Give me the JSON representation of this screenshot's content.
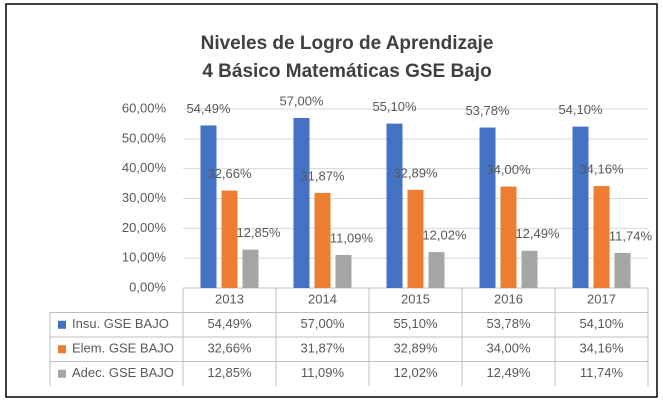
{
  "chart_data": {
    "type": "bar",
    "title": "Niveles de Logro de Aprendizaje",
    "subtitle": "4 Básico Matemáticas GSE Bajo",
    "categories": [
      "2013",
      "2014",
      "2015",
      "2016",
      "2017"
    ],
    "series": [
      {
        "name": "Insu. GSE BAJO",
        "color": "#4472c4",
        "values": [
          54.49,
          57.0,
          55.1,
          53.78,
          54.1
        ],
        "value_labels": [
          "54,49%",
          "57,00%",
          "55,10%",
          "53,78%",
          "54,10%"
        ]
      },
      {
        "name": "Elem. GSE BAJO",
        "color": "#ed7d31",
        "values": [
          32.66,
          31.87,
          32.89,
          34.0,
          34.16
        ],
        "value_labels": [
          "32,66%",
          "31,87%",
          "32,89%",
          "34,00%",
          "34,16%"
        ]
      },
      {
        "name": "Adec. GSE BAJO",
        "color": "#a5a5a5",
        "values": [
          12.85,
          11.09,
          12.02,
          12.49,
          11.74
        ],
        "value_labels": [
          "12,85%",
          "11,09%",
          "12,02%",
          "12,49%",
          "11,74%"
        ]
      }
    ],
    "ylim": [
      0,
      60
    ],
    "yticks": [
      {
        "value": 0,
        "label": "0,00%"
      },
      {
        "value": 10,
        "label": "10,00%"
      },
      {
        "value": 20,
        "label": "20,00%"
      },
      {
        "value": 30,
        "label": "30,00%"
      },
      {
        "value": 40,
        "label": "40,00%"
      },
      {
        "value": 50,
        "label": "50,00%"
      },
      {
        "value": 60,
        "label": "60,00%"
      }
    ],
    "grid": true
  }
}
